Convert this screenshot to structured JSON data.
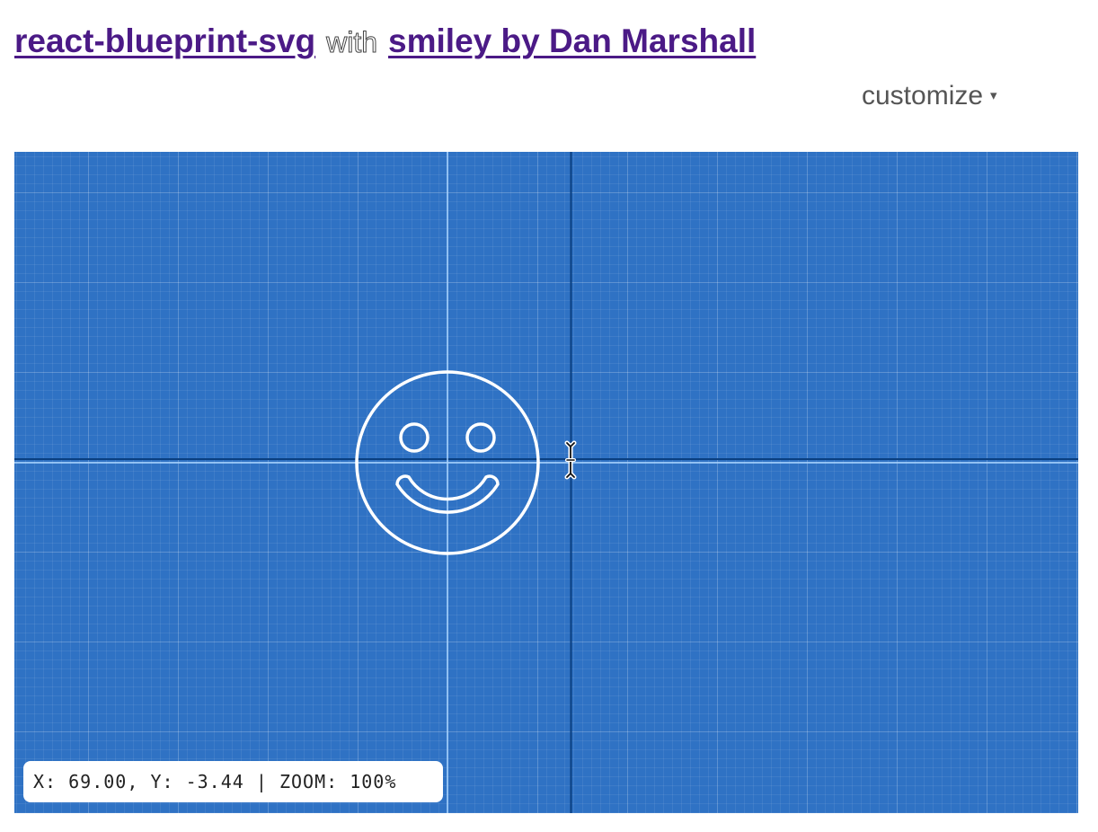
{
  "header": {
    "library_link": "react-blueprint-svg",
    "with_text": "with",
    "model_link": "smiley by Dan Marshall"
  },
  "customize": {
    "label": "customize",
    "caret": "▾"
  },
  "status": {
    "x_label": "X:",
    "x_value": "69.00",
    "y_label": "Y:",
    "y_value": "-3.44",
    "separator": "|",
    "zoom_label": "ZOOM:",
    "zoom_value": "100%"
  },
  "colors": {
    "blueprint_bg": "#2f72c4",
    "link": "#4b1a86",
    "axis": "#0a3f80",
    "crosshair": "#a8d4ff"
  },
  "icons": {
    "cursor": "text-cursor-icon"
  }
}
